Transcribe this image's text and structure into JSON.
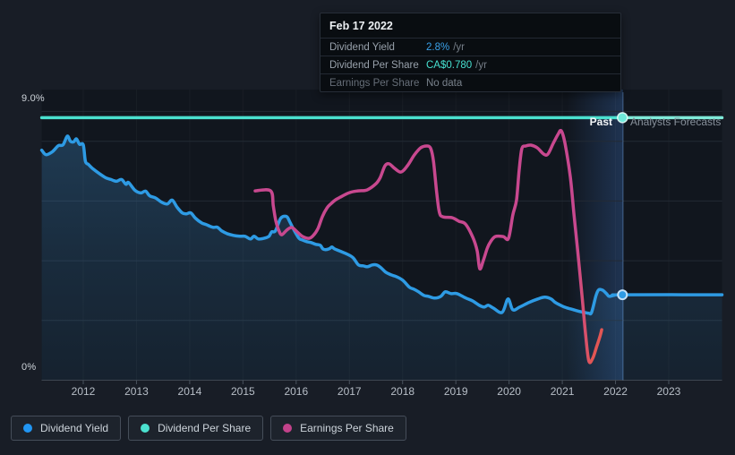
{
  "labels": {
    "past": "Past",
    "forecast": "Analysts Forecasts",
    "y_top": "9.0%",
    "y_bottom": "0%"
  },
  "tooltip": {
    "date": "Feb 17 2022",
    "rows": [
      {
        "label": "Dividend Yield",
        "value": "2.8%",
        "suffix": "/yr",
        "value_color": "#3aa0e8",
        "dim": false
      },
      {
        "label": "Dividend Per Share",
        "value": "CA$0.780",
        "suffix": "/yr",
        "value_color": "#46e0d0",
        "dim": false
      },
      {
        "label": "Earnings Per Share",
        "value": "No data",
        "suffix": "",
        "value_color": "#79828c",
        "dim": true
      }
    ]
  },
  "legend": [
    {
      "label": "Dividend Yield",
      "color": "#2196f3"
    },
    {
      "label": "Dividend Per Share",
      "color": "#4be1cf"
    },
    {
      "label": "Earnings Per Share",
      "color": "#c2428a"
    }
  ],
  "palette": {
    "page_bg": "#181d26",
    "plot_bg": "#11161e",
    "gridline": "#232a34",
    "axis": "#3e4651",
    "tick": "#49525d",
    "dividend_yield": "#2e9be4",
    "dividend_per_share": "#4ae0cf",
    "dividend_per_share_forecast": "#7fead9",
    "eps_pink": "#c8488f",
    "eps_red": "#e25654",
    "area_fill": "#3e8cc8",
    "band_fill": "#4688e6",
    "crosshair": "rgba(120,175,240,0.32)"
  },
  "chart_data": {
    "type": "line",
    "title": "Dividend history and forecast",
    "x": {
      "ticks": [
        2012,
        2013,
        2014,
        2015,
        2016,
        2017,
        2018,
        2019,
        2020,
        2021,
        2022,
        2023
      ],
      "min": 2011.22,
      "max": 2024.0
    },
    "y": {
      "unit": "percent",
      "min": 0,
      "max": 9.45,
      "gridlines": [
        2,
        4,
        6,
        8,
        9
      ],
      "label_top": 9.0,
      "label_bottom": 0
    },
    "divider_x": 2022.13,
    "highlight_band": {
      "from": 2021.08,
      "to": 2022.14
    },
    "series": [
      {
        "name": "Dividend Yield",
        "kind": "line_area",
        "unit": "%/yr",
        "points": [
          [
            2011.22,
            7.7
          ],
          [
            2011.3,
            7.55
          ],
          [
            2011.42,
            7.65
          ],
          [
            2011.53,
            7.85
          ],
          [
            2011.62,
            7.88
          ],
          [
            2011.7,
            8.17
          ],
          [
            2011.76,
            8.0
          ],
          [
            2011.82,
            7.98
          ],
          [
            2011.87,
            8.08
          ],
          [
            2011.93,
            7.9
          ],
          [
            2012.0,
            7.88
          ],
          [
            2012.04,
            7.33
          ],
          [
            2012.1,
            7.22
          ],
          [
            2012.18,
            7.08
          ],
          [
            2012.3,
            6.92
          ],
          [
            2012.42,
            6.78
          ],
          [
            2012.52,
            6.72
          ],
          [
            2012.62,
            6.66
          ],
          [
            2012.72,
            6.72
          ],
          [
            2012.8,
            6.56
          ],
          [
            2012.85,
            6.62
          ],
          [
            2012.97,
            6.36
          ],
          [
            2013.08,
            6.27
          ],
          [
            2013.17,
            6.33
          ],
          [
            2013.25,
            6.17
          ],
          [
            2013.36,
            6.1
          ],
          [
            2013.47,
            5.96
          ],
          [
            2013.58,
            5.9
          ],
          [
            2013.67,
            6.03
          ],
          [
            2013.76,
            5.8
          ],
          [
            2013.86,
            5.6
          ],
          [
            2013.94,
            5.57
          ],
          [
            2014.02,
            5.6
          ],
          [
            2014.11,
            5.42
          ],
          [
            2014.22,
            5.27
          ],
          [
            2014.31,
            5.21
          ],
          [
            2014.43,
            5.12
          ],
          [
            2014.52,
            5.12
          ],
          [
            2014.6,
            5.0
          ],
          [
            2014.7,
            4.91
          ],
          [
            2014.82,
            4.85
          ],
          [
            2014.94,
            4.82
          ],
          [
            2015.04,
            4.82
          ],
          [
            2015.14,
            4.73
          ],
          [
            2015.21,
            4.82
          ],
          [
            2015.29,
            4.73
          ],
          [
            2015.41,
            4.76
          ],
          [
            2015.49,
            4.82
          ],
          [
            2015.54,
            4.97
          ],
          [
            2015.61,
            5.0
          ],
          [
            2015.71,
            5.42
          ],
          [
            2015.82,
            5.48
          ],
          [
            2015.88,
            5.3
          ],
          [
            2015.95,
            5.06
          ],
          [
            2016.05,
            4.76
          ],
          [
            2016.11,
            4.7
          ],
          [
            2016.2,
            4.64
          ],
          [
            2016.28,
            4.61
          ],
          [
            2016.37,
            4.55
          ],
          [
            2016.45,
            4.52
          ],
          [
            2016.5,
            4.4
          ],
          [
            2016.55,
            4.37
          ],
          [
            2016.62,
            4.4
          ],
          [
            2016.67,
            4.46
          ],
          [
            2016.72,
            4.4
          ],
          [
            2016.84,
            4.31
          ],
          [
            2016.96,
            4.22
          ],
          [
            2017.07,
            4.1
          ],
          [
            2017.17,
            3.86
          ],
          [
            2017.26,
            3.83
          ],
          [
            2017.34,
            3.8
          ],
          [
            2017.43,
            3.86
          ],
          [
            2017.51,
            3.86
          ],
          [
            2017.59,
            3.77
          ],
          [
            2017.68,
            3.62
          ],
          [
            2017.78,
            3.53
          ],
          [
            2017.88,
            3.47
          ],
          [
            2018.0,
            3.35
          ],
          [
            2018.13,
            3.11
          ],
          [
            2018.21,
            3.05
          ],
          [
            2018.3,
            2.96
          ],
          [
            2018.4,
            2.84
          ],
          [
            2018.48,
            2.81
          ],
          [
            2018.6,
            2.75
          ],
          [
            2018.72,
            2.81
          ],
          [
            2018.8,
            2.96
          ],
          [
            2018.91,
            2.9
          ],
          [
            2019.02,
            2.9
          ],
          [
            2019.19,
            2.75
          ],
          [
            2019.31,
            2.66
          ],
          [
            2019.44,
            2.51
          ],
          [
            2019.53,
            2.45
          ],
          [
            2019.61,
            2.51
          ],
          [
            2019.7,
            2.42
          ],
          [
            2019.87,
            2.27
          ],
          [
            2019.98,
            2.72
          ],
          [
            2020.07,
            2.36
          ],
          [
            2020.2,
            2.45
          ],
          [
            2020.37,
            2.6
          ],
          [
            2020.54,
            2.72
          ],
          [
            2020.67,
            2.78
          ],
          [
            2020.79,
            2.72
          ],
          [
            2020.87,
            2.6
          ],
          [
            2021.0,
            2.48
          ],
          [
            2021.09,
            2.42
          ],
          [
            2021.21,
            2.36
          ],
          [
            2021.33,
            2.3
          ],
          [
            2021.41,
            2.27
          ],
          [
            2021.5,
            2.24
          ],
          [
            2021.55,
            2.27
          ],
          [
            2021.63,
            2.81
          ],
          [
            2021.68,
            3.02
          ],
          [
            2021.75,
            3.02
          ],
          [
            2021.83,
            2.9
          ],
          [
            2021.88,
            2.81
          ],
          [
            2021.97,
            2.84
          ],
          [
            2022.13,
            2.86
          ]
        ],
        "forecast_points": [
          [
            2022.13,
            2.86
          ],
          [
            2024.0,
            2.86
          ]
        ],
        "marker": [
          2022.13,
          2.86
        ]
      },
      {
        "name": "Dividend Per Share",
        "kind": "line",
        "unit": "CA$/yr",
        "points": [
          [
            2011.22,
            8.79
          ],
          [
            2022.13,
            8.79
          ]
        ],
        "forecast_points": [
          [
            2022.13,
            8.79
          ],
          [
            2024.0,
            8.79
          ]
        ],
        "marker": [
          2022.13,
          8.79
        ]
      },
      {
        "name": "Earnings Per Share",
        "kind": "line",
        "unit": "CA$/yr",
        "points": [
          [
            2015.23,
            6.34
          ],
          [
            2015.52,
            6.34
          ],
          [
            2015.57,
            5.83
          ],
          [
            2015.62,
            5.32
          ],
          [
            2015.68,
            4.99
          ],
          [
            2015.73,
            4.87
          ],
          [
            2015.82,
            5.02
          ],
          [
            2015.9,
            5.11
          ],
          [
            2015.95,
            5.08
          ],
          [
            2016.04,
            4.93
          ],
          [
            2016.12,
            4.81
          ],
          [
            2016.24,
            4.75
          ],
          [
            2016.32,
            4.84
          ],
          [
            2016.41,
            5.08
          ],
          [
            2016.49,
            5.47
          ],
          [
            2016.58,
            5.77
          ],
          [
            2016.66,
            5.92
          ],
          [
            2016.74,
            6.04
          ],
          [
            2016.83,
            6.13
          ],
          [
            2017.0,
            6.28
          ],
          [
            2017.16,
            6.34
          ],
          [
            2017.33,
            6.37
          ],
          [
            2017.5,
            6.58
          ],
          [
            2017.58,
            6.79
          ],
          [
            2017.67,
            7.18
          ],
          [
            2017.75,
            7.24
          ],
          [
            2017.85,
            7.09
          ],
          [
            2017.97,
            6.97
          ],
          [
            2018.09,
            7.18
          ],
          [
            2018.22,
            7.54
          ],
          [
            2018.34,
            7.78
          ],
          [
            2018.46,
            7.84
          ],
          [
            2018.53,
            7.75
          ],
          [
            2018.58,
            7.33
          ],
          [
            2018.64,
            6.28
          ],
          [
            2018.69,
            5.62
          ],
          [
            2018.76,
            5.47
          ],
          [
            2018.93,
            5.44
          ],
          [
            2019.06,
            5.32
          ],
          [
            2019.18,
            5.23
          ],
          [
            2019.32,
            4.78
          ],
          [
            2019.4,
            4.33
          ],
          [
            2019.45,
            3.73
          ],
          [
            2019.52,
            4.03
          ],
          [
            2019.59,
            4.42
          ],
          [
            2019.65,
            4.63
          ],
          [
            2019.74,
            4.81
          ],
          [
            2019.89,
            4.81
          ],
          [
            2019.99,
            4.75
          ],
          [
            2020.07,
            5.53
          ],
          [
            2020.14,
            6.04
          ],
          [
            2020.19,
            7.03
          ],
          [
            2020.24,
            7.75
          ],
          [
            2020.31,
            7.84
          ],
          [
            2020.41,
            7.87
          ],
          [
            2020.53,
            7.78
          ],
          [
            2020.65,
            7.57
          ],
          [
            2020.73,
            7.57
          ],
          [
            2020.83,
            7.93
          ],
          [
            2020.92,
            8.23
          ],
          [
            2020.98,
            8.35
          ],
          [
            2021.05,
            7.93
          ],
          [
            2021.15,
            6.82
          ],
          [
            2021.22,
            5.53
          ],
          [
            2021.29,
            4.33
          ],
          [
            2021.37,
            2.83
          ],
          [
            2021.44,
            1.48
          ],
          [
            2021.5,
            0.64
          ],
          [
            2021.57,
            0.73
          ],
          [
            2021.64,
            1.09
          ],
          [
            2021.71,
            1.48
          ],
          [
            2021.74,
            1.69
          ]
        ]
      }
    ]
  }
}
